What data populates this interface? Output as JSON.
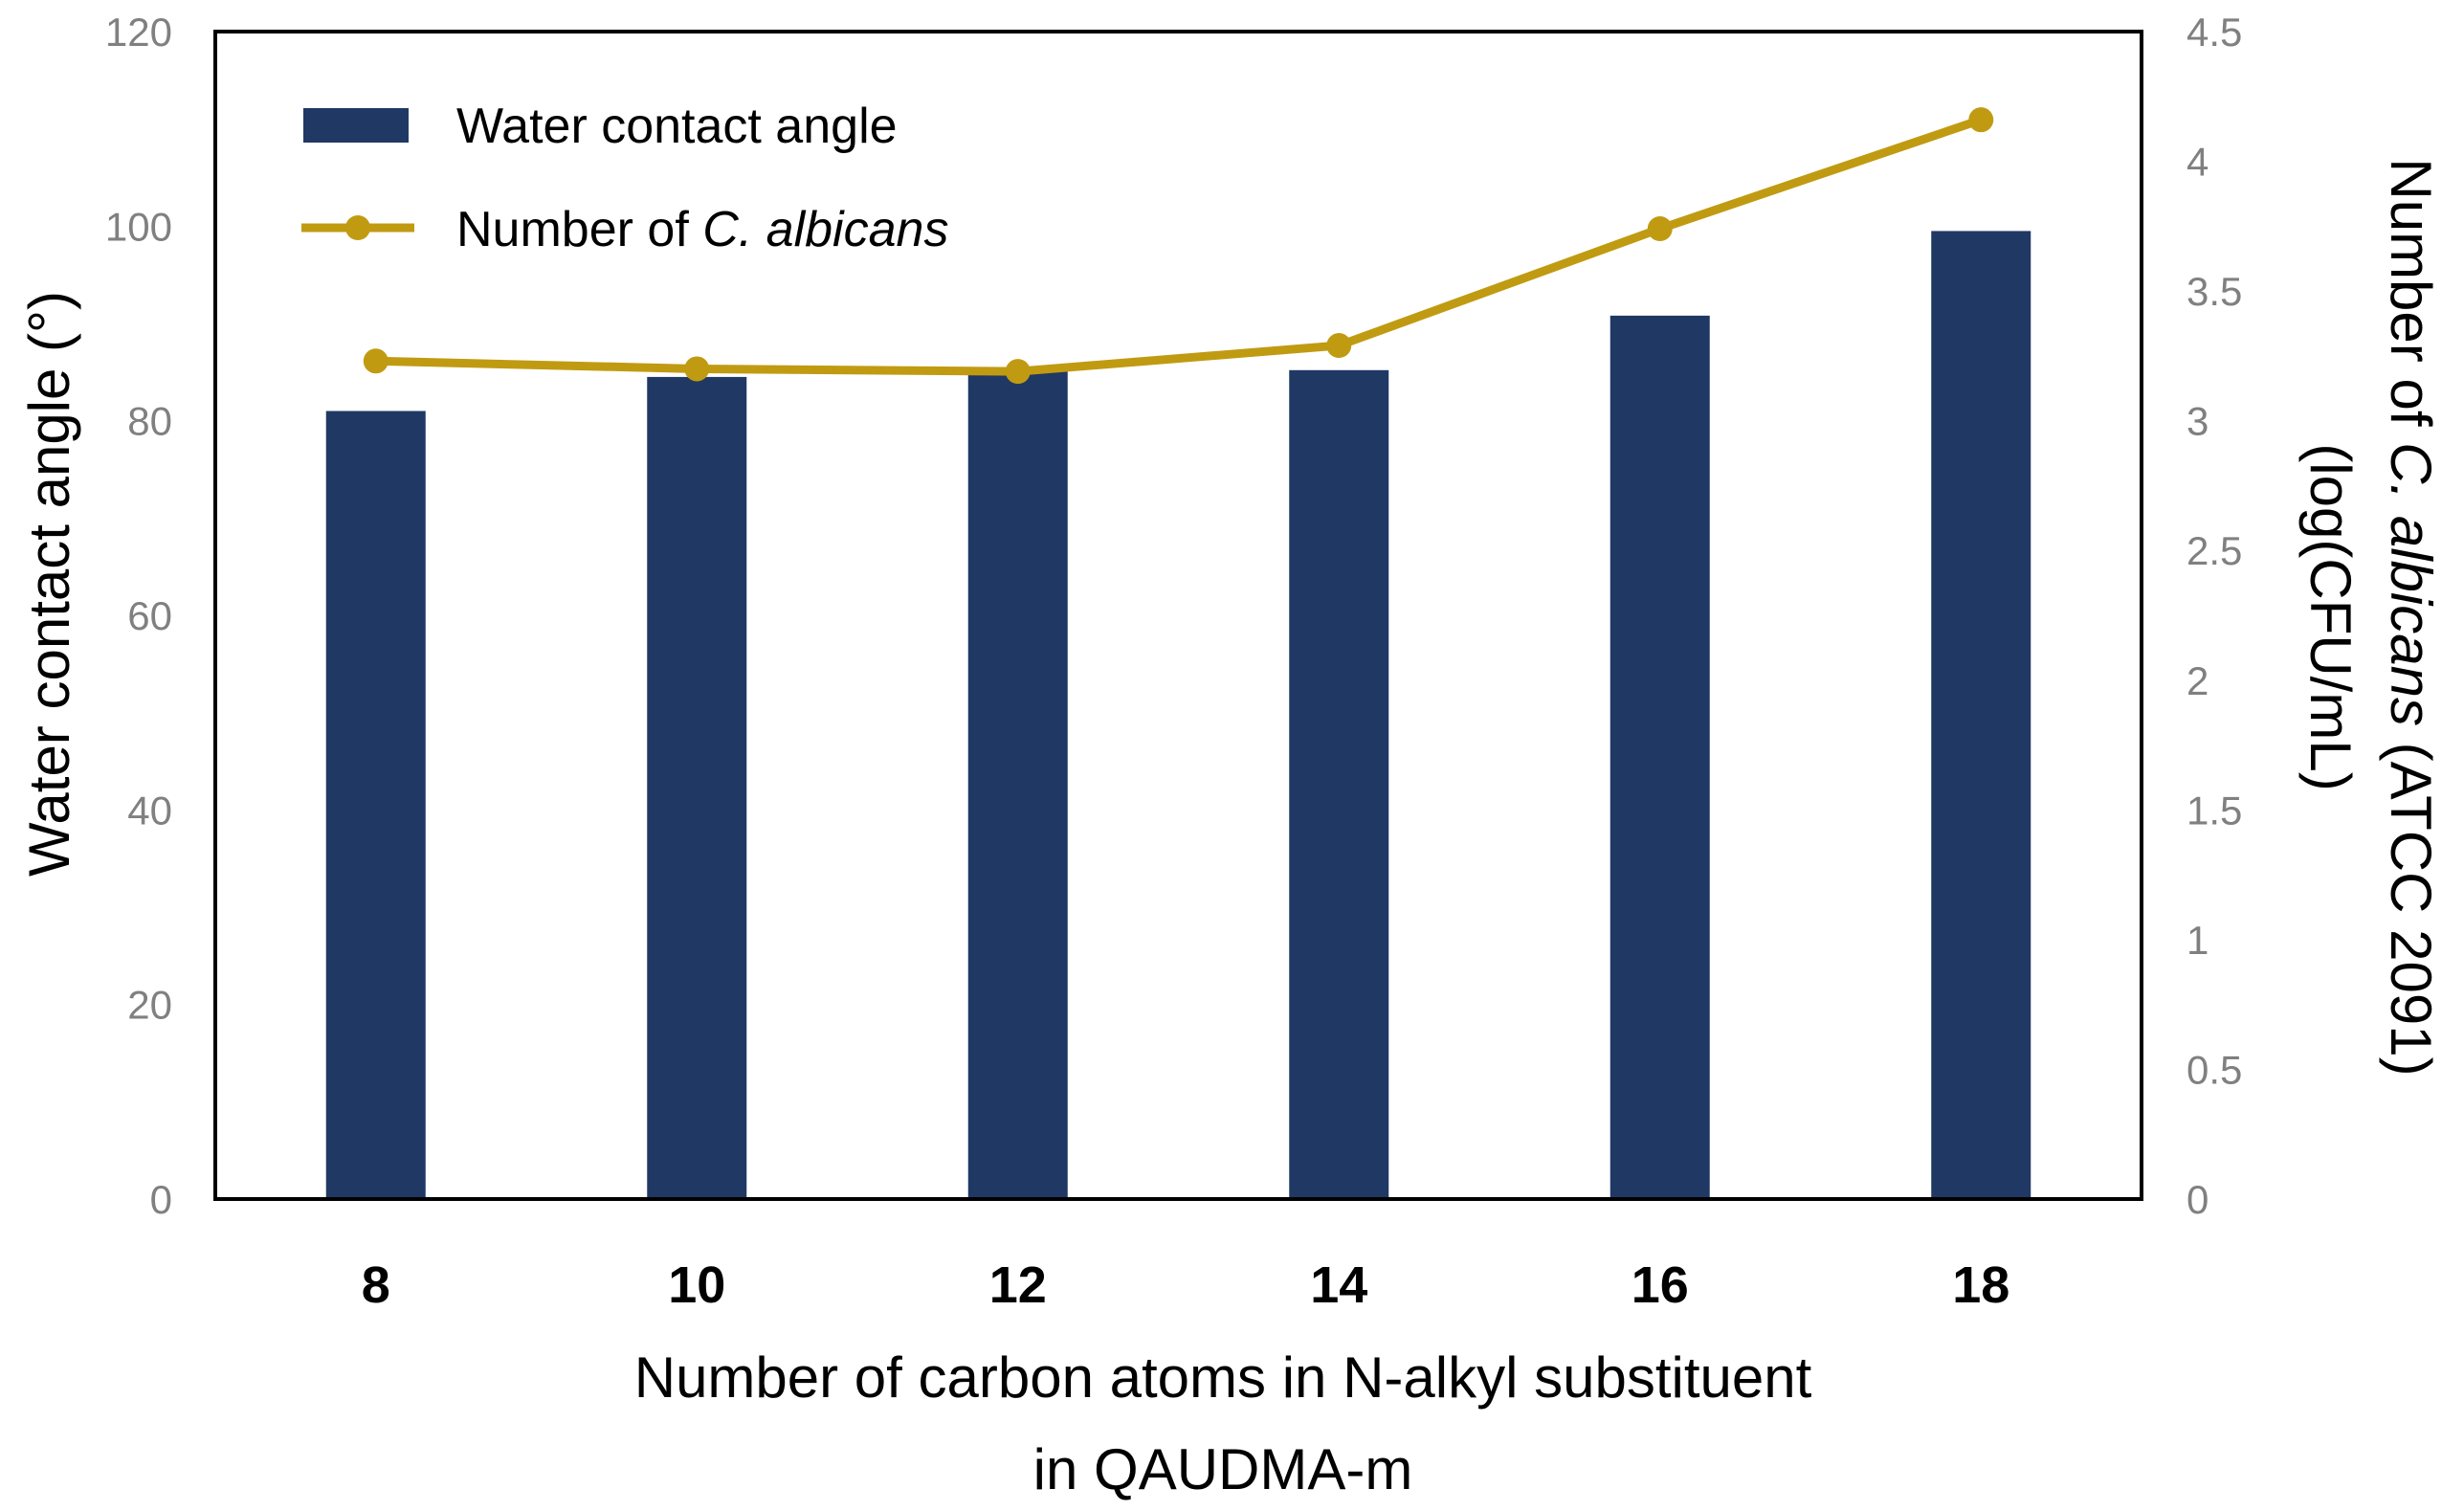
{
  "chart_data": {
    "type": "bar+line",
    "categories": [
      "8",
      "10",
      "12",
      "14",
      "16",
      "18"
    ],
    "xlabel": "Number of carbon atoms in N-alkyl substituent in QAUDMA-m",
    "xlabel_lines": [
      "Number of carbon atoms in N-alkyl substituent",
      "in QAUDMA-m"
    ],
    "ylabel_left": "Water contact angle (°)",
    "ylabel_right_line1_prefix": "Number of ",
    "ylabel_right_line1_italic": "C. albicans",
    "ylabel_right_line1_suffix": " (ATCC 2091)",
    "ylabel_right_line2": "(log(CFU/mL)",
    "ylim_left": [
      0,
      120
    ],
    "ylim_right": [
      0,
      4.5
    ],
    "left_ticks": [
      "0",
      "20",
      "40",
      "60",
      "80",
      "100",
      "120"
    ],
    "right_ticks": [
      "0",
      "0.5",
      "1",
      "1.5",
      "2",
      "2.5",
      "3",
      "3.5",
      "4",
      "4.5"
    ],
    "grid": false,
    "legend_position": "top-left",
    "series": [
      {
        "name": "Water contact angle",
        "type": "bar",
        "axis": "left",
        "color": "#203864",
        "values": [
          81,
          84.5,
          85.5,
          85.2,
          90.8,
          99.5
        ]
      },
      {
        "name_prefix": "Number of ",
        "name_italic": "C. albicans",
        "type": "line",
        "axis": "right",
        "color": "#C09B12",
        "values": [
          3.23,
          3.2,
          3.19,
          3.29,
          3.74,
          4.16
        ]
      }
    ]
  }
}
